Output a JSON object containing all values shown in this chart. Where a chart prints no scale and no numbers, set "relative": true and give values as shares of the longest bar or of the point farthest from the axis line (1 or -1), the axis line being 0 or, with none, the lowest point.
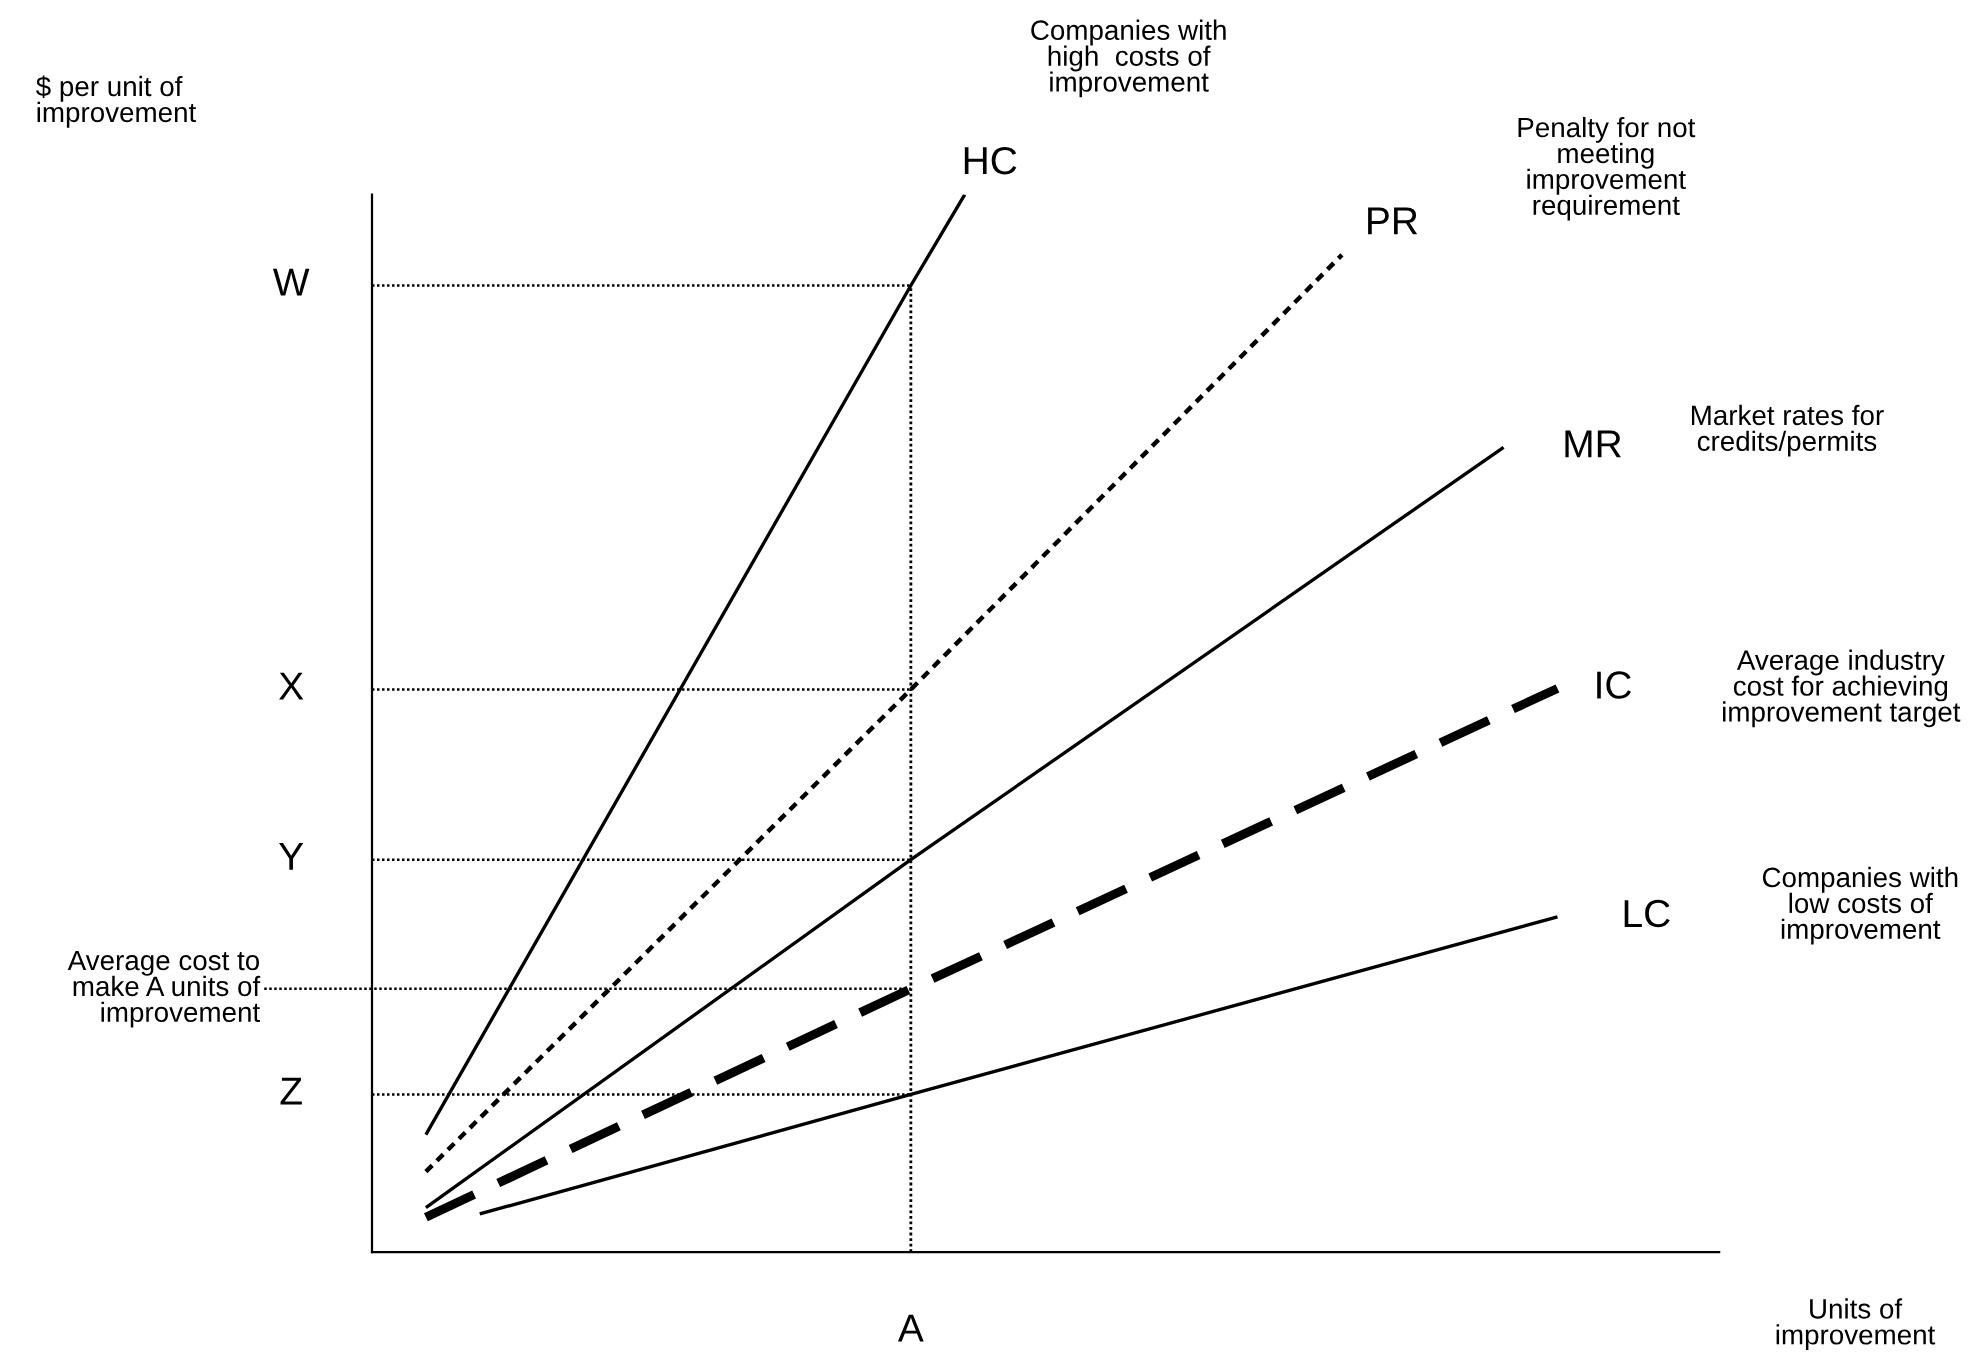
{
  "chart_data": {
    "type": "line",
    "relative": true,
    "xlabel": "Units of\nimprovement",
    "categories": [
      null,
      null,
      null,
      null,
      null,
      null,
      null,
      null,
      null,
      null,
      null,
      null,
      null,
      null,
      null,
      null,
      null,
      null,
      null,
      null,
      null,
      null,
      null,
      null,
      null
    ],
    "series": [
      {
        "name": "HC",
        "color": "#000000",
        "line_style": "solid",
        "values": [
          null,
          0.111,
          null,
          null,
          null,
          null,
          null,
          null,
          null,
          null,
          0.914,
          1,
          null,
          null,
          null,
          null,
          null,
          null,
          null,
          null,
          null,
          null,
          null,
          null,
          null
        ]
      },
      {
        "name": "PR",
        "color": "#000000",
        "line_style": "dotted",
        "values": [
          null,
          0.076,
          null,
          null,
          null,
          null,
          null,
          null,
          null,
          null,
          0.532,
          null,
          null,
          null,
          null,
          null,
          null,
          null,
          0.943,
          null,
          null,
          null,
          null,
          null,
          null
        ]
      },
      {
        "name": "MR",
        "color": "#000000",
        "line_style": "solid",
        "values": [
          null,
          0.042,
          null,
          null,
          null,
          null,
          null,
          null,
          null,
          null,
          0.371,
          null,
          null,
          null,
          null,
          null,
          null,
          null,
          null,
          null,
          null,
          0.761,
          null,
          null,
          null
        ]
      },
      {
        "name": "IC",
        "color": "#000000",
        "line_style": "dashed",
        "values": [
          null,
          0.033,
          null,
          null,
          null,
          null,
          null,
          null,
          null,
          null,
          0.249,
          null,
          null,
          null,
          null,
          null,
          null,
          null,
          null,
          null,
          null,
          null,
          0.533,
          null,
          null
        ]
      },
      {
        "name": "LC",
        "color": "#000000",
        "line_style": "solid",
        "values": [
          null,
          null,
          0.036,
          null,
          null,
          null,
          null,
          null,
          null,
          null,
          0.149,
          null,
          null,
          null,
          null,
          null,
          null,
          null,
          null,
          null,
          null,
          null,
          0.317,
          null,
          null
        ]
      }
    ],
    "ref_lines": [
      {
        "axis": "y",
        "value": 0.914,
        "label": "W",
        "line_style": "dotted"
      },
      {
        "axis": "y",
        "value": 0.532,
        "label": "X",
        "line_style": "dotted"
      },
      {
        "axis": "y",
        "value": 0.371,
        "label": "Y",
        "line_style": "dotted"
      },
      {
        "axis": "y",
        "value": 0.249,
        "label": "Average cost to\nmake A units of\nimprovement",
        "line_style": "dotted"
      },
      {
        "axis": "y",
        "value": 0.149,
        "label": "Z",
        "line_style": "dotted"
      }
    ],
    "annotations": [
      "Companies with\nhigh  costs of\nimprovement",
      "Penalty for not\nmeeting\nimprovement\nrequirement",
      "Market rates for\ncredits/permits",
      "Average industry\ncost for achieving\nimprovement target",
      "Companies with\nlow costs of\nimprovement",
      "A",
      "$ per unit of\nimprovement"
    ]
  }
}
